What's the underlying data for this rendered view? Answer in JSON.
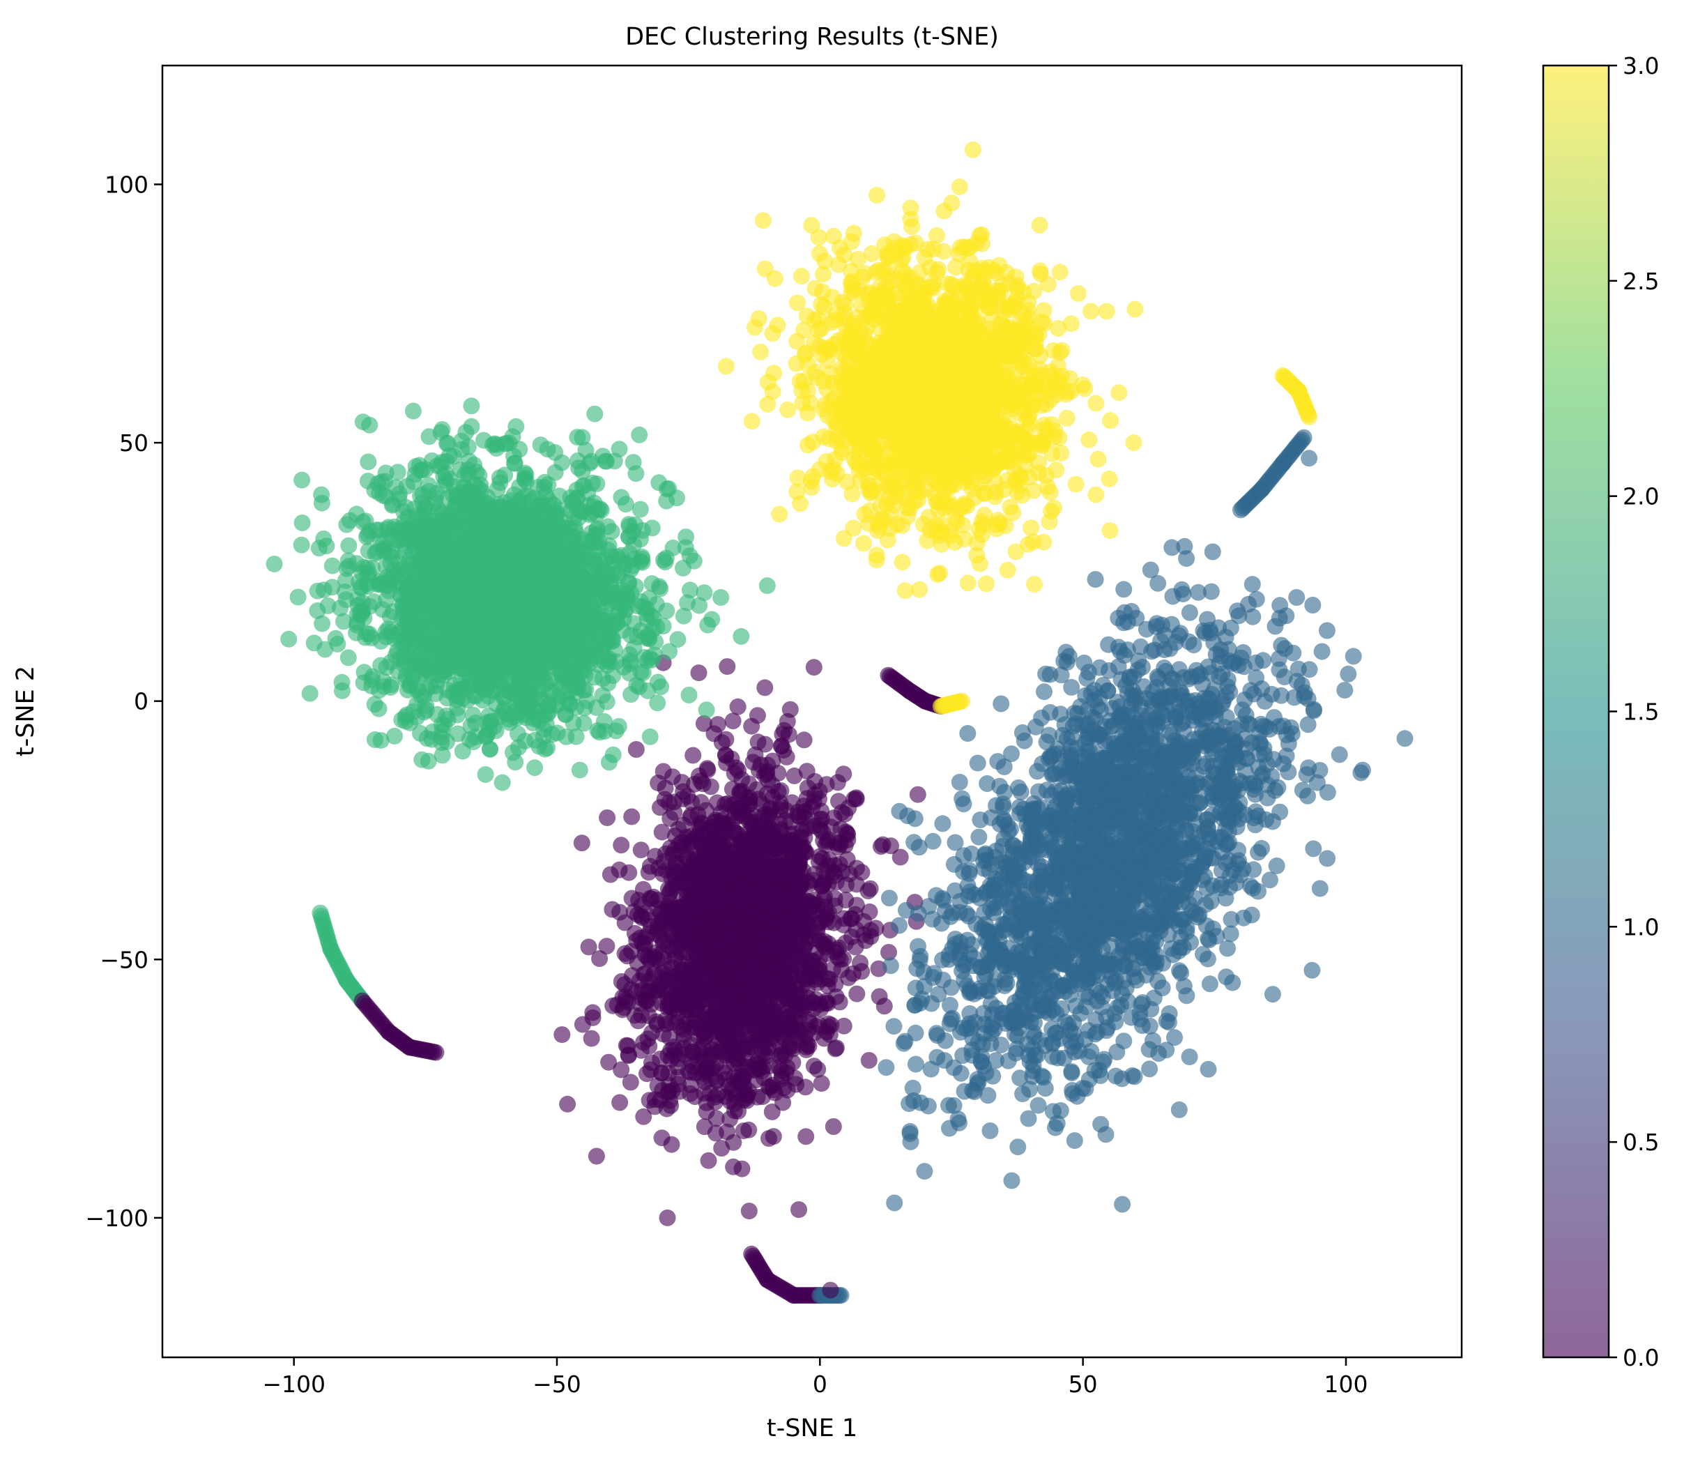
{
  "chart_data": {
    "type": "scatter",
    "title": "DEC Clustering Results (t-SNE)",
    "xlabel": "t-SNE 1",
    "ylabel": "t-SNE 2",
    "xlim": [
      -125,
      122
    ],
    "ylim": [
      -127,
      123
    ],
    "xticks": [
      -100,
      -50,
      0,
      50,
      100
    ],
    "xtick_labels": [
      "−100",
      "−50",
      "0",
      "50",
      "100"
    ],
    "yticks": [
      -100,
      -50,
      0,
      50,
      100
    ],
    "ytick_labels": [
      "−100",
      "−50",
      "0",
      "50",
      "100"
    ],
    "grid": false,
    "marker_alpha": 0.6,
    "colorbar": {
      "range": [
        0.0,
        3.0
      ],
      "ticks": [
        0.0,
        0.5,
        1.0,
        1.5,
        2.0,
        2.5,
        3.0
      ],
      "tick_labels": [
        "0.0",
        "0.5",
        "1.0",
        "1.5",
        "2.0",
        "2.5",
        "3.0"
      ],
      "colormap": "viridis"
    },
    "series": [
      {
        "label": 0,
        "color": "#440154",
        "center": [
          -15,
          -45
        ],
        "spread": [
          17,
          28
        ],
        "rotation_deg": -8,
        "count": 2300,
        "extent": {
          "x": [
            -68,
            22
          ],
          "y": [
            -101,
            17
          ]
        }
      },
      {
        "label": 1,
        "color": "#31688e",
        "center": [
          55,
          -30
        ],
        "spread": [
          22,
          44
        ],
        "rotation_deg": -32,
        "count": 2300,
        "extent": {
          "x": [
            12,
            112
          ],
          "y": [
            -103,
            30
          ]
        }
      },
      {
        "label": 2,
        "color": "#35b779",
        "center": [
          -60,
          20
        ],
        "spread": [
          24,
          22
        ],
        "rotation_deg": 0,
        "count": 2600,
        "extent": {
          "x": [
            -112,
            -8
          ],
          "y": [
            -31,
            72
          ]
        }
      },
      {
        "label": 3,
        "color": "#fde725",
        "center": [
          22,
          60
        ],
        "spread": [
          20,
          23
        ],
        "rotation_deg": 10,
        "count": 1900,
        "extent": {
          "x": [
            -35,
            72
          ],
          "y": [
            -2,
            112
          ]
        }
      }
    ],
    "tails": [
      {
        "label": 2,
        "points": [
          [
            -95,
            -41
          ],
          [
            -93,
            -48
          ],
          [
            -90,
            -54
          ],
          [
            -87,
            -58
          ]
        ]
      },
      {
        "label": 0,
        "points": [
          [
            -87,
            -58
          ],
          [
            -82,
            -64
          ],
          [
            -78,
            -67
          ],
          [
            -73,
            -68
          ]
        ]
      },
      {
        "label": 0,
        "points": [
          [
            -13,
            -107
          ],
          [
            -10,
            -112
          ],
          [
            -5,
            -115
          ],
          [
            0,
            -115
          ]
        ]
      },
      {
        "label": 1,
        "points": [
          [
            0,
            -115
          ],
          [
            4,
            -115
          ]
        ]
      },
      {
        "label": 3,
        "points": [
          [
            88,
            63
          ],
          [
            91,
            60
          ],
          [
            93,
            55
          ]
        ]
      },
      {
        "label": 1,
        "points": [
          [
            92,
            51
          ],
          [
            88,
            46
          ],
          [
            84,
            41
          ],
          [
            80,
            37
          ]
        ]
      },
      {
        "label": 0,
        "points": [
          [
            13,
            5
          ],
          [
            17,
            2
          ],
          [
            20,
            0
          ],
          [
            23,
            -1
          ]
        ]
      },
      {
        "label": 3,
        "points": [
          [
            23,
            -1
          ],
          [
            27,
            0
          ]
        ]
      }
    ],
    "outliers": [
      {
        "label": 0,
        "points": [
          [
            -48,
            -78
          ],
          [
            2,
            -114
          ],
          [
            -29,
            -100
          ]
        ]
      },
      {
        "label": 1,
        "points": [
          [
            30,
            -12
          ],
          [
            93,
            47
          ]
        ]
      }
    ]
  }
}
